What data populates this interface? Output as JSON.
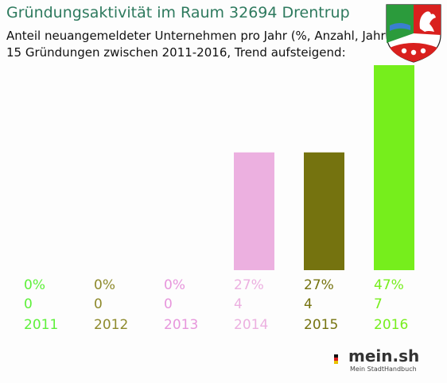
{
  "title": "Gründungsaktivität im Raum 32694 Drentrup",
  "subtitle_line1": "Anteil neuangemeldeter Unternehmen pro Jahr (%, Anzahl, Jahr)",
  "subtitle_line2": "15 Gründungen zwischen 2011-2016, Trend aufsteigend:",
  "logo": {
    "text": "mein.sh",
    "subtext": "Mein StadtHandbuch"
  },
  "chart_data": {
    "type": "bar",
    "title": "Gründungsaktivität im Raum 32694 Drentrup",
    "categories": [
      "2011",
      "2012",
      "2013",
      "2014",
      "2015",
      "2016"
    ],
    "values_percent": [
      0,
      0,
      0,
      27,
      27,
      47
    ],
    "percent_labels": [
      "0%",
      "0%",
      "0%",
      "27%",
      "27%",
      "47%"
    ],
    "counts": [
      0,
      0,
      0,
      4,
      4,
      7
    ],
    "colors": [
      "#5ef03a",
      "#8e8a2c",
      "#e796dc",
      "#ecb0e0",
      "#75730f",
      "#76ee1c"
    ],
    "ylim": [
      0,
      47
    ],
    "xlabel": "",
    "ylabel": ""
  }
}
